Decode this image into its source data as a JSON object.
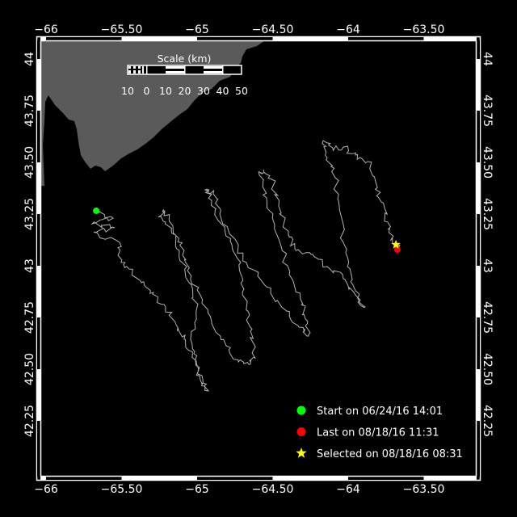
{
  "colors": {
    "background": "#000000",
    "land": "#5a5a5a",
    "track": "#b4b4b4",
    "start": "#00ff00",
    "last": "#ff0000",
    "selected": "#ffff00",
    "frame": "#ffffff"
  },
  "axes": {
    "lon_ticks": [
      {
        "value": -66,
        "label": "−66"
      },
      {
        "value": -65.5,
        "label": "−65.50"
      },
      {
        "value": -65,
        "label": "−65"
      },
      {
        "value": -64.5,
        "label": "−64.50"
      },
      {
        "value": -64,
        "label": "−64"
      },
      {
        "value": -63.5,
        "label": "−63.50"
      }
    ],
    "lat_ticks": [
      {
        "value": 44,
        "label": "44"
      },
      {
        "value": 43.75,
        "label": "43.75"
      },
      {
        "value": 43.5,
        "label": "43.50"
      },
      {
        "value": 43.25,
        "label": "43.25"
      },
      {
        "value": 43,
        "label": "43"
      },
      {
        "value": 42.75,
        "label": "42.75"
      },
      {
        "value": 42.5,
        "label": "42.50"
      },
      {
        "value": 42.25,
        "label": "42.25"
      }
    ]
  },
  "scale_bar": {
    "title": "Scale (km)",
    "labels": [
      "10",
      "0",
      "10",
      "20",
      "30",
      "40",
      "50"
    ]
  },
  "legend": [
    {
      "marker": "circle",
      "color": "#00ff00",
      "label": "Start on 06/24/16 14:01"
    },
    {
      "marker": "circle",
      "color": "#ff0000",
      "label": "Last on 08/18/16 11:31"
    },
    {
      "marker": "star",
      "color": "#ffff00",
      "label": "Selected on 08/18/16 08:31"
    }
  ],
  "markers": {
    "start": {
      "lon": -65.668,
      "lat": 43.266
    },
    "last": {
      "lon": -63.674,
      "lat": 43.078
    },
    "selected": {
      "lon": -63.684,
      "lat": 43.102
    }
  },
  "track": [
    [
      -65.668,
      43.266
    ],
    [
      -65.556,
      43.23
    ],
    [
      -65.695,
      43.203
    ],
    [
      -65.545,
      43.184
    ],
    [
      -65.684,
      43.164
    ],
    [
      -65.513,
      43.113
    ],
    [
      -65.503,
      43.016
    ],
    [
      -65.449,
      42.984
    ],
    [
      -65.369,
      42.918
    ],
    [
      -65.289,
      42.871
    ],
    [
      -65.209,
      42.801
    ],
    [
      -65.128,
      42.703
    ],
    [
      -65.086,
      42.645
    ],
    [
      -65.032,
      42.559
    ],
    [
      -64.968,
      42.469
    ],
    [
      -64.925,
      42.395
    ],
    [
      -64.979,
      42.449
    ],
    [
      -65.011,
      42.547
    ],
    [
      -65.043,
      42.645
    ],
    [
      -65.0,
      42.801
    ],
    [
      -65.053,
      42.918
    ],
    [
      -65.118,
      43.074
    ],
    [
      -65.171,
      43.172
    ],
    [
      -65.246,
      43.238
    ],
    [
      -65.214,
      43.262
    ],
    [
      -65.16,
      43.18
    ],
    [
      -65.086,
      43.074
    ],
    [
      -65.064,
      42.977
    ],
    [
      -64.979,
      42.859
    ],
    [
      -64.904,
      42.73
    ],
    [
      -64.807,
      42.613
    ],
    [
      -64.727,
      42.535
    ],
    [
      -64.658,
      42.523
    ],
    [
      -64.615,
      42.551
    ],
    [
      -64.647,
      42.684
    ],
    [
      -64.663,
      42.781
    ],
    [
      -64.69,
      42.887
    ],
    [
      -64.711,
      43.016
    ],
    [
      -64.781,
      43.121
    ],
    [
      -64.85,
      43.211
    ],
    [
      -64.904,
      43.316
    ],
    [
      -64.936,
      43.371
    ],
    [
      -64.893,
      43.348
    ],
    [
      -64.85,
      43.25
    ],
    [
      -64.754,
      43.133
    ],
    [
      -64.674,
      43.016
    ],
    [
      -64.54,
      42.898
    ],
    [
      -64.406,
      42.781
    ],
    [
      -64.326,
      42.703
    ],
    [
      -64.262,
      42.66
    ],
    [
      -64.283,
      42.742
    ],
    [
      -64.316,
      42.84
    ],
    [
      -64.39,
      42.957
    ],
    [
      -64.444,
      43.094
    ],
    [
      -64.487,
      43.199
    ],
    [
      -64.54,
      43.328
    ],
    [
      -64.583,
      43.434
    ],
    [
      -64.561,
      43.465
    ],
    [
      -64.508,
      43.418
    ],
    [
      -64.46,
      43.289
    ],
    [
      -64.396,
      43.152
    ],
    [
      -64.353,
      43.082
    ],
    [
      -64.246,
      43.055
    ],
    [
      -64.139,
      42.996
    ],
    [
      -64.032,
      42.937
    ],
    [
      -63.952,
      42.859
    ],
    [
      -63.888,
      42.801
    ],
    [
      -63.952,
      42.879
    ],
    [
      -64.005,
      42.996
    ],
    [
      -64.032,
      43.113
    ],
    [
      -64.059,
      43.289
    ],
    [
      -64.086,
      43.426
    ],
    [
      -64.139,
      43.523
    ],
    [
      -64.166,
      43.605
    ],
    [
      -64.102,
      43.57
    ],
    [
      -64.032,
      43.574
    ],
    [
      -63.952,
      43.535
    ],
    [
      -63.872,
      43.504
    ],
    [
      -63.818,
      43.406
    ],
    [
      -63.781,
      43.309
    ],
    [
      -63.738,
      43.211
    ],
    [
      -63.711,
      43.133
    ],
    [
      -63.684,
      43.102
    ],
    [
      -63.674,
      43.078
    ]
  ]
}
